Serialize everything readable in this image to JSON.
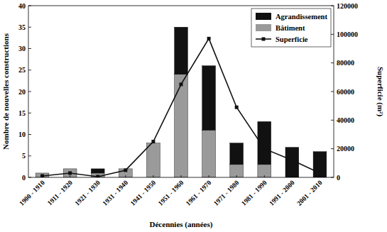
{
  "chart_data": {
    "type": "bar",
    "stacked": true,
    "x_label": "Décennies (années)",
    "y_label": "Nombre de nouvelles constructions",
    "y2_label": "Superficie (m²)",
    "categories": [
      "1900 - 1910",
      "1911 - 1920",
      "1921 - 1930",
      "1931 - 1940",
      "1941 - 1950",
      "1951 - 1960",
      "1961 - 1970",
      "1971 - 1980",
      "1981 - 1990",
      "1991 - 2000",
      "2001 - 2010"
    ],
    "series": [
      {
        "name": "Bâtiment",
        "type": "bar",
        "color": "#9a9a9a",
        "values": [
          1,
          2,
          1,
          2,
          8,
          24,
          11,
          3,
          3,
          0,
          0
        ]
      },
      {
        "name": "Agrandissement",
        "type": "bar",
        "color": "#111111",
        "values": [
          0,
          0,
          1,
          0,
          0,
          11,
          15,
          5,
          10,
          7,
          6
        ]
      },
      {
        "name": "Superficie",
        "type": "line",
        "axis": "y2",
        "color": "#111111",
        "marker": "square",
        "line_style": "solid",
        "values": [
          1000,
          3000,
          500,
          5000,
          25000,
          65000,
          97000,
          49000,
          20000,
          12000,
          3000
        ]
      }
    ],
    "ylim": [
      0,
      40
    ],
    "yticks": [
      0,
      5,
      10,
      15,
      20,
      25,
      30,
      35,
      40
    ],
    "y2lim": [
      0,
      120000
    ],
    "y2ticks": [
      0,
      20000,
      40000,
      60000,
      80000,
      100000,
      120000
    ],
    "legend": "upper right",
    "grid": false
  }
}
